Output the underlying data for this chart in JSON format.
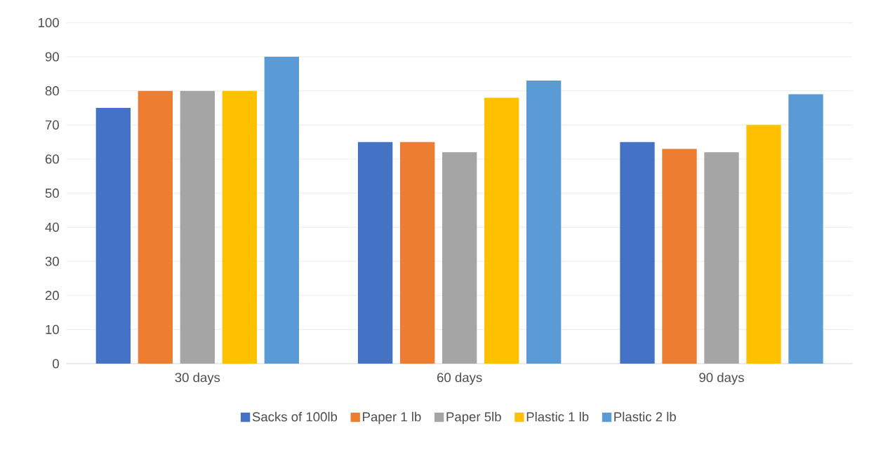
{
  "chart_data": {
    "type": "bar",
    "categories": [
      "30 days",
      "60 days",
      "90 days"
    ],
    "series": [
      {
        "name": "Sacks of 100lb",
        "color": "#4472c4",
        "values": [
          75,
          65,
          65
        ]
      },
      {
        "name": "Paper 1 lb",
        "color": "#ed7d31",
        "values": [
          80,
          65,
          63
        ]
      },
      {
        "name": "Paper 5lb",
        "color": "#a5a5a5",
        "values": [
          80,
          62,
          62
        ]
      },
      {
        "name": "Plastic 1 lb",
        "color": "#ffc000",
        "values": [
          80,
          78,
          70
        ]
      },
      {
        "name": "Plastic 2 lb",
        "color": "#5b9bd5",
        "values": [
          90,
          83,
          79
        ]
      }
    ],
    "ylim": [
      0,
      100
    ],
    "yticks": [
      0,
      10,
      20,
      30,
      40,
      50,
      60,
      70,
      80,
      90,
      100
    ],
    "grid": "y",
    "legend": "bottom"
  }
}
